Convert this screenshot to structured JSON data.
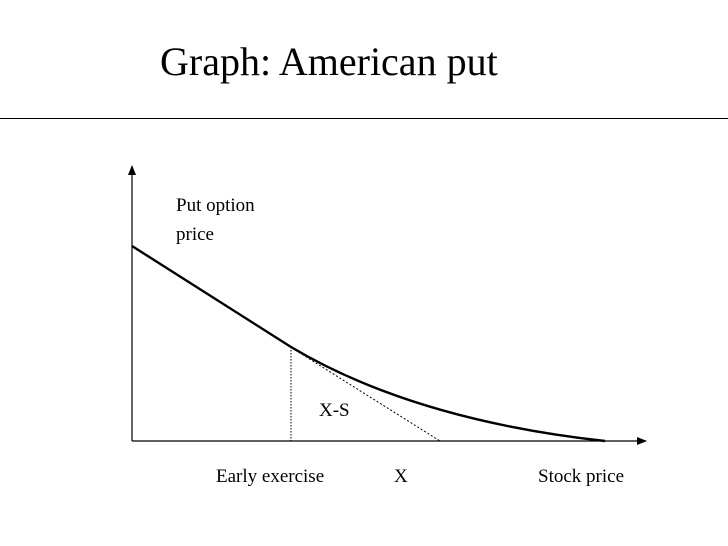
{
  "slide": {
    "title": "Graph: American put"
  },
  "graph": {
    "y_axis_label_lines": [
      "Put option",
      "price"
    ],
    "region_label": "X-S",
    "x_axis_labels": {
      "early_exercise": "Early exercise",
      "strike": "X",
      "stock_price": "Stock price"
    }
  }
}
